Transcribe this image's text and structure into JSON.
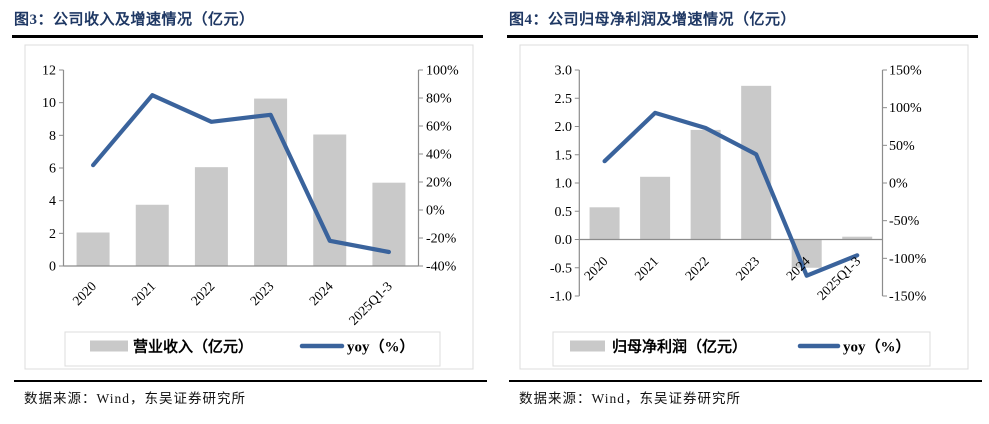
{
  "figure3": {
    "title": "图3：公司收入及增速情况（亿元）",
    "source": "数据来源：Wind，东吴证券研究所"
  },
  "figure4": {
    "title": "图4：公司归母净利润及增速情况（亿元）",
    "source": "数据来源：Wind，东吴证券研究所"
  },
  "colors": {
    "title_navy": "#1F3864",
    "bar_gray": "#C9C9C9",
    "line_blue": "#3A639C",
    "axis_gray": "#8C8C8C",
    "tick_text": "#000000",
    "frame_gray": "#DCDCDC",
    "rule_black": "#000000"
  },
  "chart_data": [
    {
      "type": "combo-bar-line",
      "title": "图3：公司收入及增速情况（亿元）",
      "categories": [
        "2020",
        "2021",
        "2022",
        "2023",
        "2024",
        "2025Q1-3"
      ],
      "series": [
        {
          "name": "营业收入（亿元）",
          "kind": "bar",
          "axis": "left",
          "values": [
            2.05,
            3.75,
            6.05,
            10.25,
            8.05,
            5.1
          ]
        },
        {
          "name": "yoy（%）",
          "kind": "line",
          "axis": "right",
          "values": [
            32,
            82,
            63,
            68,
            -22,
            -30
          ]
        }
      ],
      "left_axis": {
        "min": 0,
        "max": 12,
        "tick_labels": [
          "12",
          "10",
          "8",
          "6",
          "4",
          "2",
          "0"
        ]
      },
      "right_axis": {
        "min": -40,
        "max": 100,
        "tick_labels": [
          "100%",
          "80%",
          "60%",
          "40%",
          "20%",
          "0%",
          "-20%",
          "-40%"
        ]
      },
      "legend_position": "bottom",
      "grid": false
    },
    {
      "type": "combo-bar-line",
      "title": "图4：公司归母净利润及增速情况（亿元）",
      "categories": [
        "2020",
        "2021",
        "2022",
        "2023",
        "2024",
        "2025Q1-3"
      ],
      "series": [
        {
          "name": "归母净利润（亿元）",
          "kind": "bar",
          "axis": "left",
          "values": [
            0.57,
            1.11,
            1.94,
            2.72,
            -0.5,
            0.05
          ]
        },
        {
          "name": "yoy（%）",
          "kind": "line",
          "axis": "right",
          "values": [
            29,
            93,
            73,
            38,
            -123,
            -96
          ]
        }
      ],
      "left_axis": {
        "min": -1,
        "max": 3,
        "tick_labels": [
          "3.0",
          "2.5",
          "2.0",
          "1.5",
          "1.0",
          "0.5",
          "0.0",
          "-0.5",
          "-1.0"
        ]
      },
      "right_axis": {
        "min": -150,
        "max": 150,
        "tick_labels": [
          "150%",
          "100%",
          "50%",
          "0%",
          "-50%",
          "-100%",
          "-150%"
        ]
      },
      "legend_position": "bottom",
      "grid": false
    }
  ]
}
